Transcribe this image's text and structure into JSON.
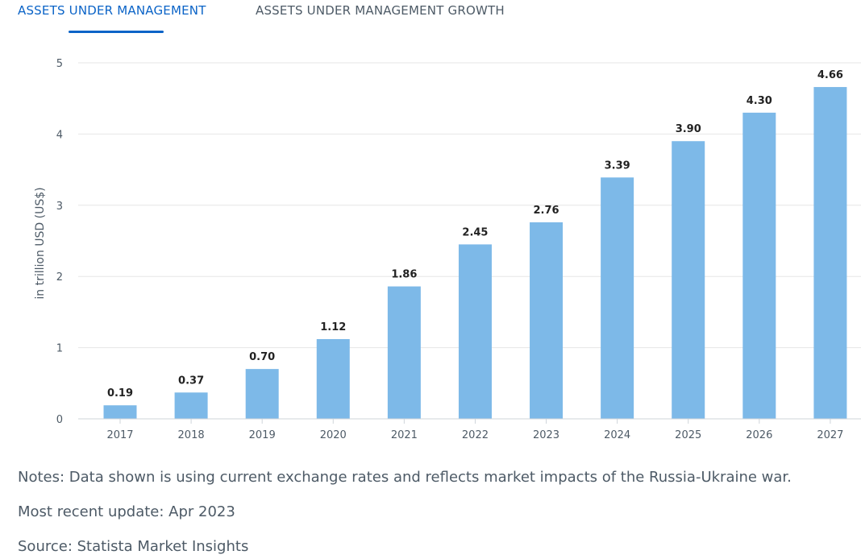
{
  "tabs": {
    "active_label": "ASSETS UNDER MANAGEMENT",
    "other_label": "ASSETS UNDER MANAGEMENT GROWTH"
  },
  "colors": {
    "accent": "#0a63c7",
    "bar": "#7db9e8",
    "grid": "#e6e6e6",
    "text": "#4d5a66"
  },
  "chart_data": {
    "type": "bar",
    "categories": [
      "2017",
      "2018",
      "2019",
      "2020",
      "2021",
      "2022",
      "2023",
      "2024",
      "2025",
      "2026",
      "2027"
    ],
    "values": [
      0.19,
      0.37,
      0.7,
      1.12,
      1.86,
      2.45,
      2.76,
      3.39,
      3.9,
      4.3,
      4.66
    ],
    "value_labels": [
      "0.19",
      "0.37",
      "0.70",
      "1.12",
      "1.86",
      "2.45",
      "2.76",
      "3.39",
      "3.90",
      "4.30",
      "4.66"
    ],
    "title": "",
    "xlabel": "",
    "ylabel": "in trillion USD (US$)",
    "ylim": [
      0,
      5
    ],
    "yticks": [
      "0",
      "1",
      "2",
      "3",
      "4",
      "5"
    ],
    "grid": true
  },
  "notes": {
    "line1": "Notes: Data shown is using current exchange rates and reflects market impacts of the Russia-Ukraine war.",
    "line2": "Most recent update: Apr 2023",
    "line3": "Source: Statista Market Insights"
  }
}
